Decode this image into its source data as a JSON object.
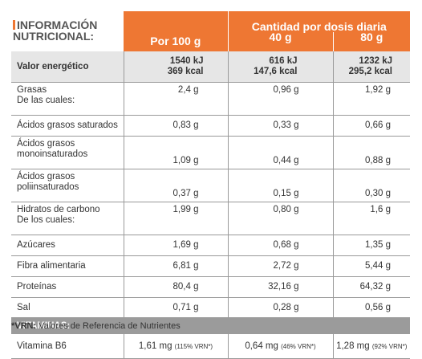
{
  "header": {
    "title_line1": "INFORMACIÓN",
    "title_line2": "NUTRICIONAL:",
    "per100": "Por 100 g",
    "dose_title": "Cantidad por dosis diaria",
    "dose_40": "40 g",
    "dose_80": "80 g"
  },
  "energy": {
    "label": "Valor energético",
    "per100_kj": "1540 kJ",
    "per100_kcal": "369 kcal",
    "d40_kj": "616 kJ",
    "d40_kcal": "147,6 kcal",
    "d80_kj": "1232 kJ",
    "d80_kcal": "295,2 kcal"
  },
  "rows": [
    {
      "label1": "Grasas",
      "label2": "De las cuales:",
      "v100": "2,4 g",
      "v40": "0,96 g",
      "v80": "1,92 g"
    },
    {
      "label1": "Ácidos grasos saturados",
      "label2": "",
      "v100": "0,83 g",
      "v40": "0,33 g",
      "v80": "0,66 g"
    },
    {
      "label1": "Ácidos grasos",
      "label2": "monoinsaturados",
      "v100": "1,09 g",
      "v40": "0,44 g",
      "v80": "0,88 g"
    },
    {
      "label1": "Ácidos grasos",
      "label2": "poliinsaturados",
      "v100": "0,37 g",
      "v40": "0,15 g",
      "v80": "0,30 g"
    },
    {
      "label1": "Hidratos de carbono",
      "label2": "De los cuales:",
      "v100": "1,99 g",
      "v40": "0,80 g",
      "v80": "1,6 g"
    },
    {
      "label1": "Azúcares",
      "label2": "",
      "v100": "1,69 g",
      "v40": "0,68 g",
      "v80": "1,35 g"
    },
    {
      "label1": "Fibra alimentaria",
      "label2": "",
      "v100": "6,81 g",
      "v40": "2,72 g",
      "v80": "5,44 g"
    },
    {
      "label1": "Proteínas",
      "label2": "",
      "v100": "80,4 g",
      "v40": "32,16 g",
      "v80": "64,32 g"
    },
    {
      "label1": "Sal",
      "label2": "",
      "v100": "0,71 g",
      "v40": "0,28 g",
      "v80": "0,56 g"
    }
  ],
  "vitamins": {
    "heading": "VITAMINAS:",
    "label": "Vitamina B6",
    "v100": "1,61 mg",
    "v100_vrn": "(115% VRN*)",
    "v40": "0,64 mg",
    "v40_vrn": "(46% VRN*)",
    "v80": "1,28 mg",
    "v80_vrn": "(92% VRN*)"
  },
  "footnote": {
    "key": "*VRN:",
    "text": " Valores de Referencia de Nutrientes"
  },
  "colors": {
    "accent": "#ee7733",
    "header_gray": "#e6e6e6",
    "vitamin_bar": "#9b9b9b"
  }
}
